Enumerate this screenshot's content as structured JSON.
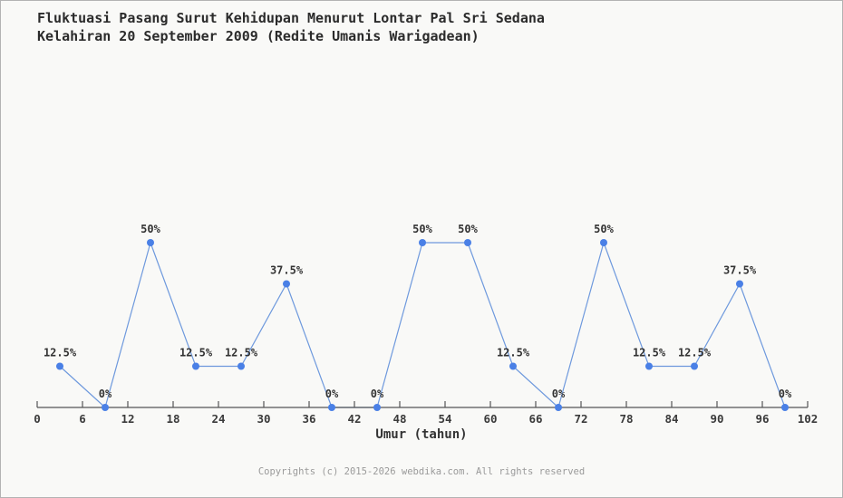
{
  "title": {
    "line1": "Fluktuasi Pasang Surut Kehidupan Menurut Lontar Pal Sri Sedana",
    "line2": "Kelahiran 20 September 2009 (Redite Umanis Warigadean)"
  },
  "chart_data": {
    "type": "line",
    "x": [
      3,
      9,
      15,
      21,
      27,
      33,
      39,
      45,
      51,
      57,
      63,
      69,
      75,
      81,
      87,
      93,
      99
    ],
    "values": [
      12.5,
      0,
      50,
      12.5,
      12.5,
      37.5,
      0,
      0,
      50,
      50,
      12.5,
      0,
      50,
      12.5,
      12.5,
      37.5,
      0
    ],
    "point_labels": [
      "12.5%",
      "0%",
      "50%",
      "12.5%",
      "12.5%",
      "37.5%",
      "0%",
      "0%",
      "50%",
      "50%",
      "12.5%",
      "0%",
      "50%",
      "12.5%",
      "12.5%",
      "37.5%",
      "0%"
    ],
    "xlabel": "Umur (tahun)",
    "x_ticks": [
      0,
      6,
      12,
      18,
      24,
      30,
      36,
      42,
      48,
      54,
      60,
      66,
      72,
      78,
      84,
      90,
      96,
      102
    ],
    "xlim": [
      0,
      102
    ],
    "ylim": [
      0,
      62.5
    ],
    "grid": false,
    "legend": "none",
    "marker_color": "#4a80e6",
    "line_color": "#6e99dd",
    "axis_color": "#555555",
    "tick_label_color": "#3a3a3a",
    "point_label_color": "#333333"
  },
  "footer": {
    "copyright": "Copyrights (c) 2015-2026 webdika.com. All rights reserved"
  },
  "colors": {
    "background": "#f9f9f7",
    "border": "#b3b3b3",
    "title": "#2b2b2b",
    "axis_label": "#333333",
    "footer": "#9a9a9a"
  }
}
